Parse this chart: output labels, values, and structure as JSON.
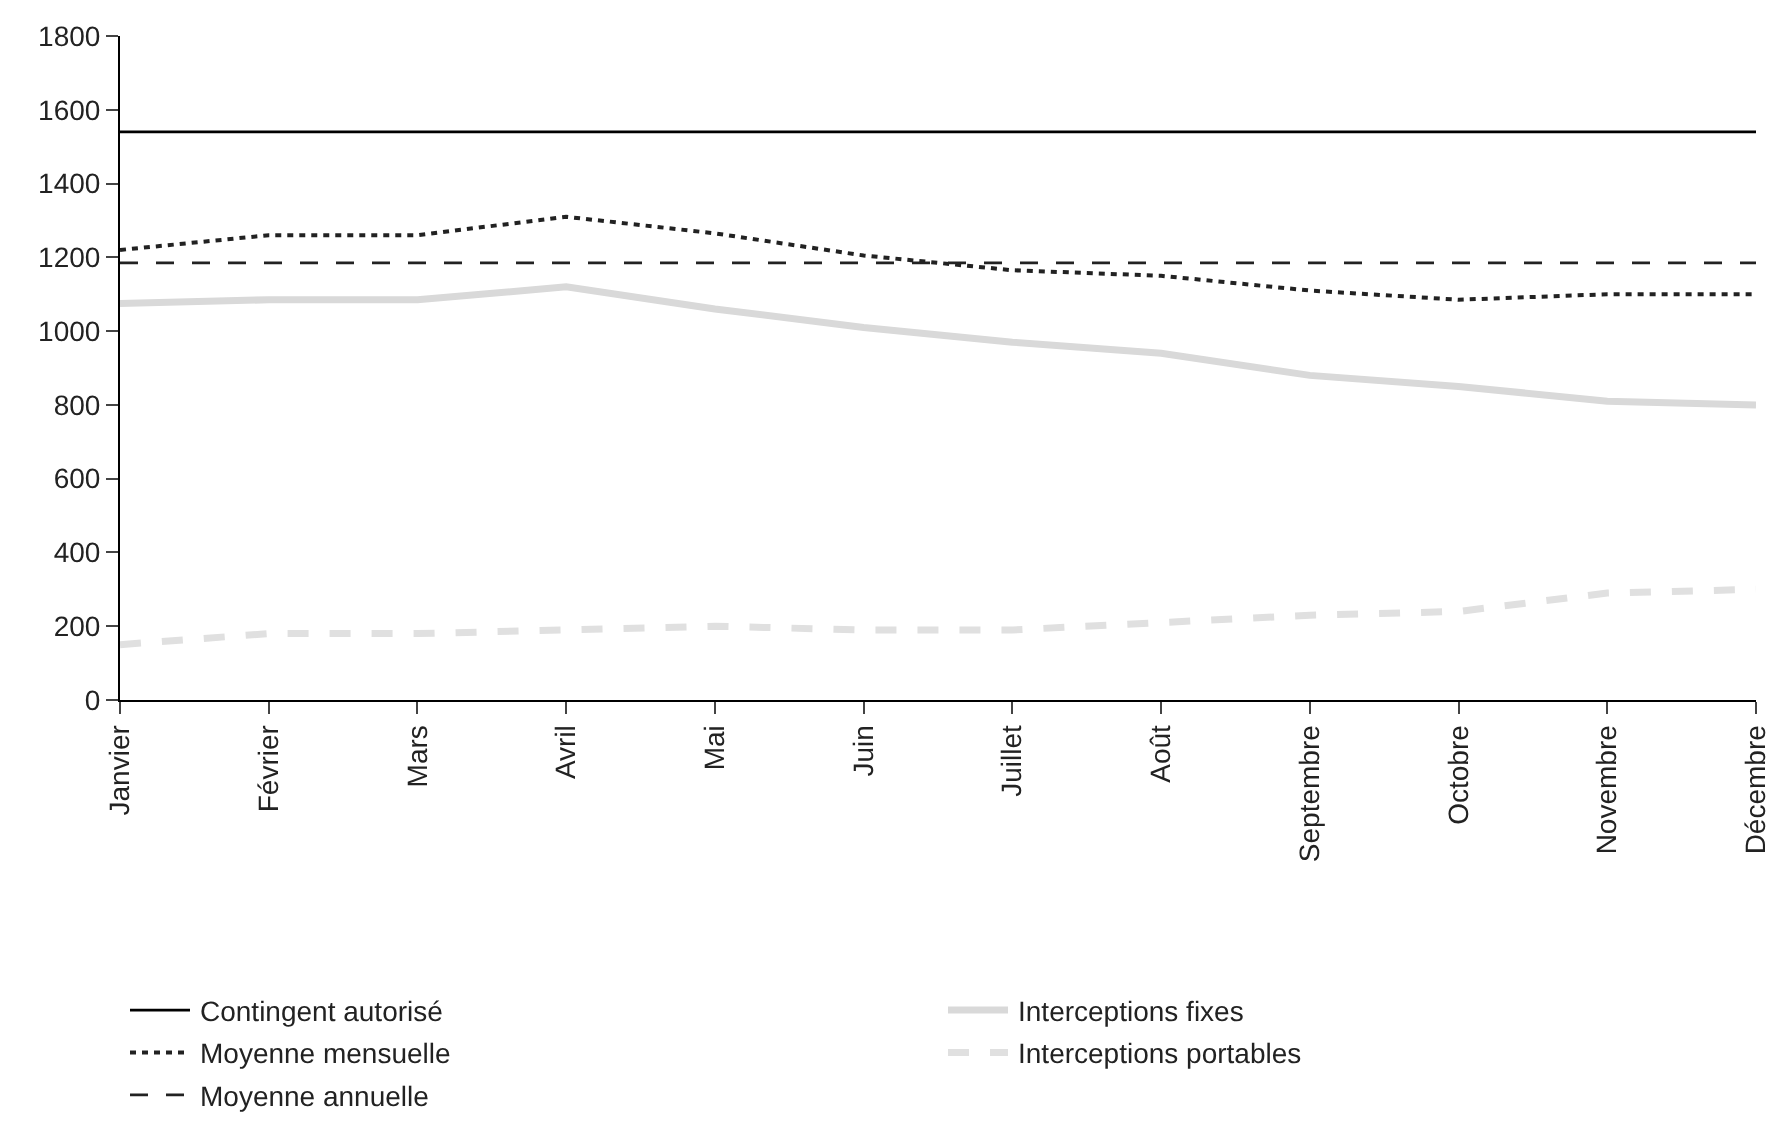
{
  "chart_data": {
    "type": "line",
    "categories": [
      "Janvier",
      "Février",
      "Mars",
      "Avril",
      "Mai",
      "Juin",
      "Juillet",
      "Août",
      "Septembre",
      "Octobre",
      "Novembre",
      "Décembre"
    ],
    "series": [
      {
        "name": "Contingent autorisé",
        "color": "#000000",
        "line_style": "solid",
        "values": [
          1540,
          1540,
          1540,
          1540,
          1540,
          1540,
          1540,
          1540,
          1540,
          1540,
          1540,
          1540
        ]
      },
      {
        "name": "Interceptions fixes",
        "color": "#d9d9d9",
        "line_style": "solid",
        "values": [
          1075,
          1085,
          1085,
          1120,
          1060,
          1010,
          970,
          940,
          880,
          850,
          810,
          800
        ]
      },
      {
        "name": "Moyenne mensuelle",
        "color": "#222222",
        "line_style": "dotted",
        "values": [
          1220,
          1260,
          1260,
          1310,
          1265,
          1205,
          1165,
          1150,
          1110,
          1085,
          1100,
          1100
        ]
      },
      {
        "name": "Interceptions portables",
        "color": "#e0e0e0",
        "line_style": "dashed",
        "values": [
          150,
          180,
          180,
          190,
          200,
          190,
          190,
          210,
          230,
          240,
          290,
          300
        ]
      },
      {
        "name": "Moyenne annuelle",
        "color": "#222222",
        "line_style": "dashed",
        "values": [
          1185,
          1185,
          1185,
          1185,
          1185,
          1185,
          1185,
          1185,
          1185,
          1185,
          1185,
          1185
        ]
      }
    ],
    "ylim": [
      0,
      1800
    ],
    "yticks": [
      0,
      200,
      400,
      600,
      800,
      1000,
      1200,
      1400,
      1600,
      1800
    ],
    "legend": "bottom",
    "marker": "none"
  }
}
